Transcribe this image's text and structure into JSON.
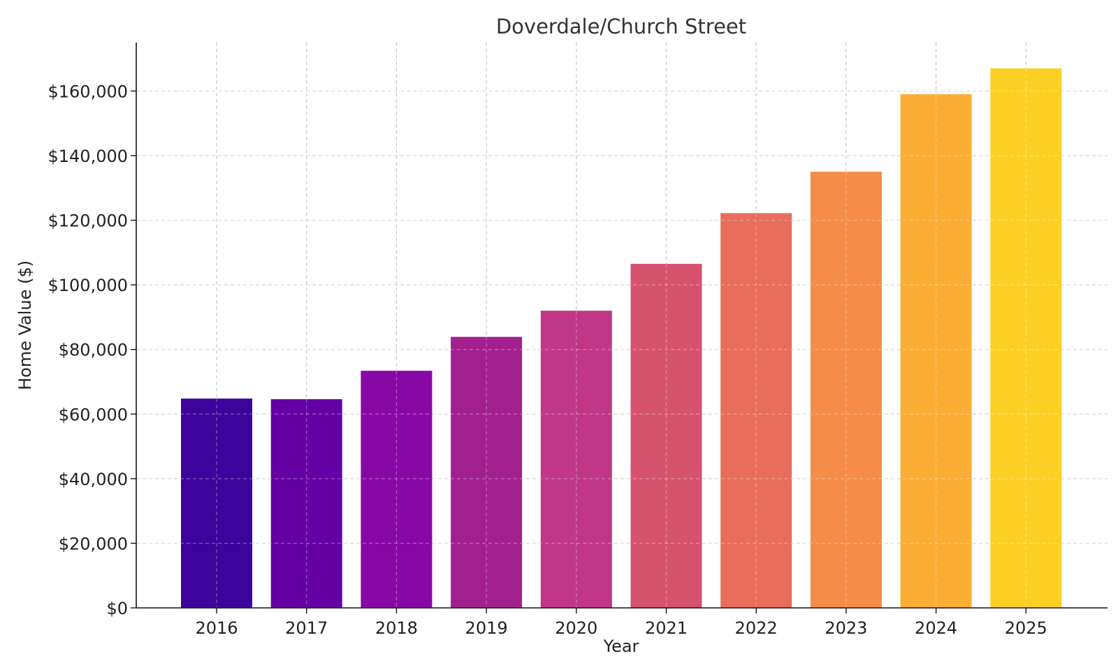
{
  "chart_data": {
    "type": "bar",
    "title": "Doverdale/Church Street",
    "xlabel": "Year",
    "ylabel": "Home Value ($)",
    "categories": [
      "2016",
      "2017",
      "2018",
      "2019",
      "2020",
      "2021",
      "2022",
      "2023",
      "2024",
      "2025"
    ],
    "values": [
      64800,
      64600,
      73400,
      83900,
      92000,
      106500,
      122200,
      135000,
      159000,
      167000
    ],
    "colors": [
      "#3d049b",
      "#6500a4",
      "#8808a6",
      "#a3208f",
      "#bf3786",
      "#d5536e",
      "#e86d5b",
      "#f58c48",
      "#fcad34",
      "#fccf25"
    ],
    "ylim": [
      0,
      175000
    ],
    "yticks": [
      0,
      20000,
      40000,
      60000,
      80000,
      100000,
      120000,
      140000,
      160000
    ],
    "ytick_labels": [
      "$0",
      "$20,000",
      "$40,000",
      "$60,000",
      "$80,000",
      "$100,000",
      "$120,000",
      "$140,000",
      "$160,000"
    ],
    "grid": true,
    "legend": false
  }
}
